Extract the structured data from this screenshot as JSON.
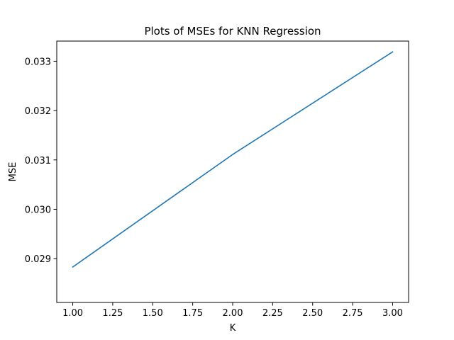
{
  "chart_data": {
    "type": "line",
    "title": "Plots of MSEs for KNN Regression",
    "xlabel": "K",
    "ylabel": "MSE",
    "x": [
      1,
      2,
      3
    ],
    "series": [
      {
        "values": [
          0.02883,
          0.03111,
          0.03319
        ],
        "color": "#1f77b4"
      }
    ],
    "xlim": [
      0.9,
      3.1
    ],
    "ylim": [
      0.028112,
      0.033408
    ],
    "xticks": [
      1.0,
      1.25,
      1.5,
      1.75,
      2.0,
      2.25,
      2.5,
      2.75,
      3.0
    ],
    "xtick_labels": [
      "1.00",
      "1.25",
      "1.50",
      "1.75",
      "2.00",
      "2.25",
      "2.50",
      "2.75",
      "3.00"
    ],
    "yticks": [
      0.029,
      0.03,
      0.031,
      0.032,
      0.033
    ],
    "ytick_labels": [
      "0.029",
      "0.030",
      "0.031",
      "0.032",
      "0.033"
    ],
    "grid": false,
    "legend": "none"
  }
}
